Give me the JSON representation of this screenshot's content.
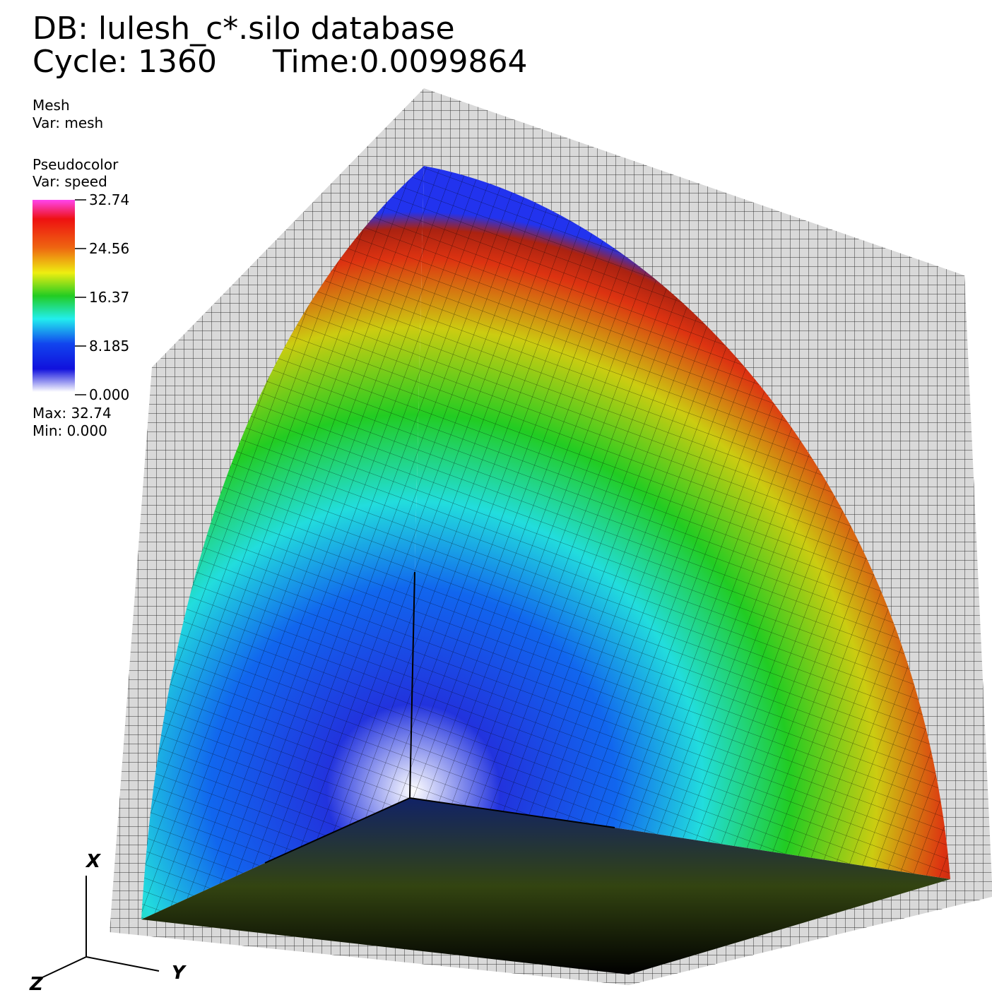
{
  "header": {
    "database": "DB: lulesh_c*.silo database",
    "cycle": "Cycle: 1360",
    "time": "Time:0.0099864"
  },
  "legend": {
    "mesh": {
      "plot": "Mesh",
      "var": "Var: mesh"
    },
    "pseudocolor": {
      "plot": "Pseudocolor",
      "var": "Var: speed",
      "ticks": [
        "32.74",
        "24.56",
        "16.37",
        "8.185",
        "0.000"
      ],
      "max": "Max:  32.74",
      "min": "Min:  0.000"
    }
  },
  "triad": {
    "x": "X",
    "y": "Y",
    "z": "Z"
  }
}
